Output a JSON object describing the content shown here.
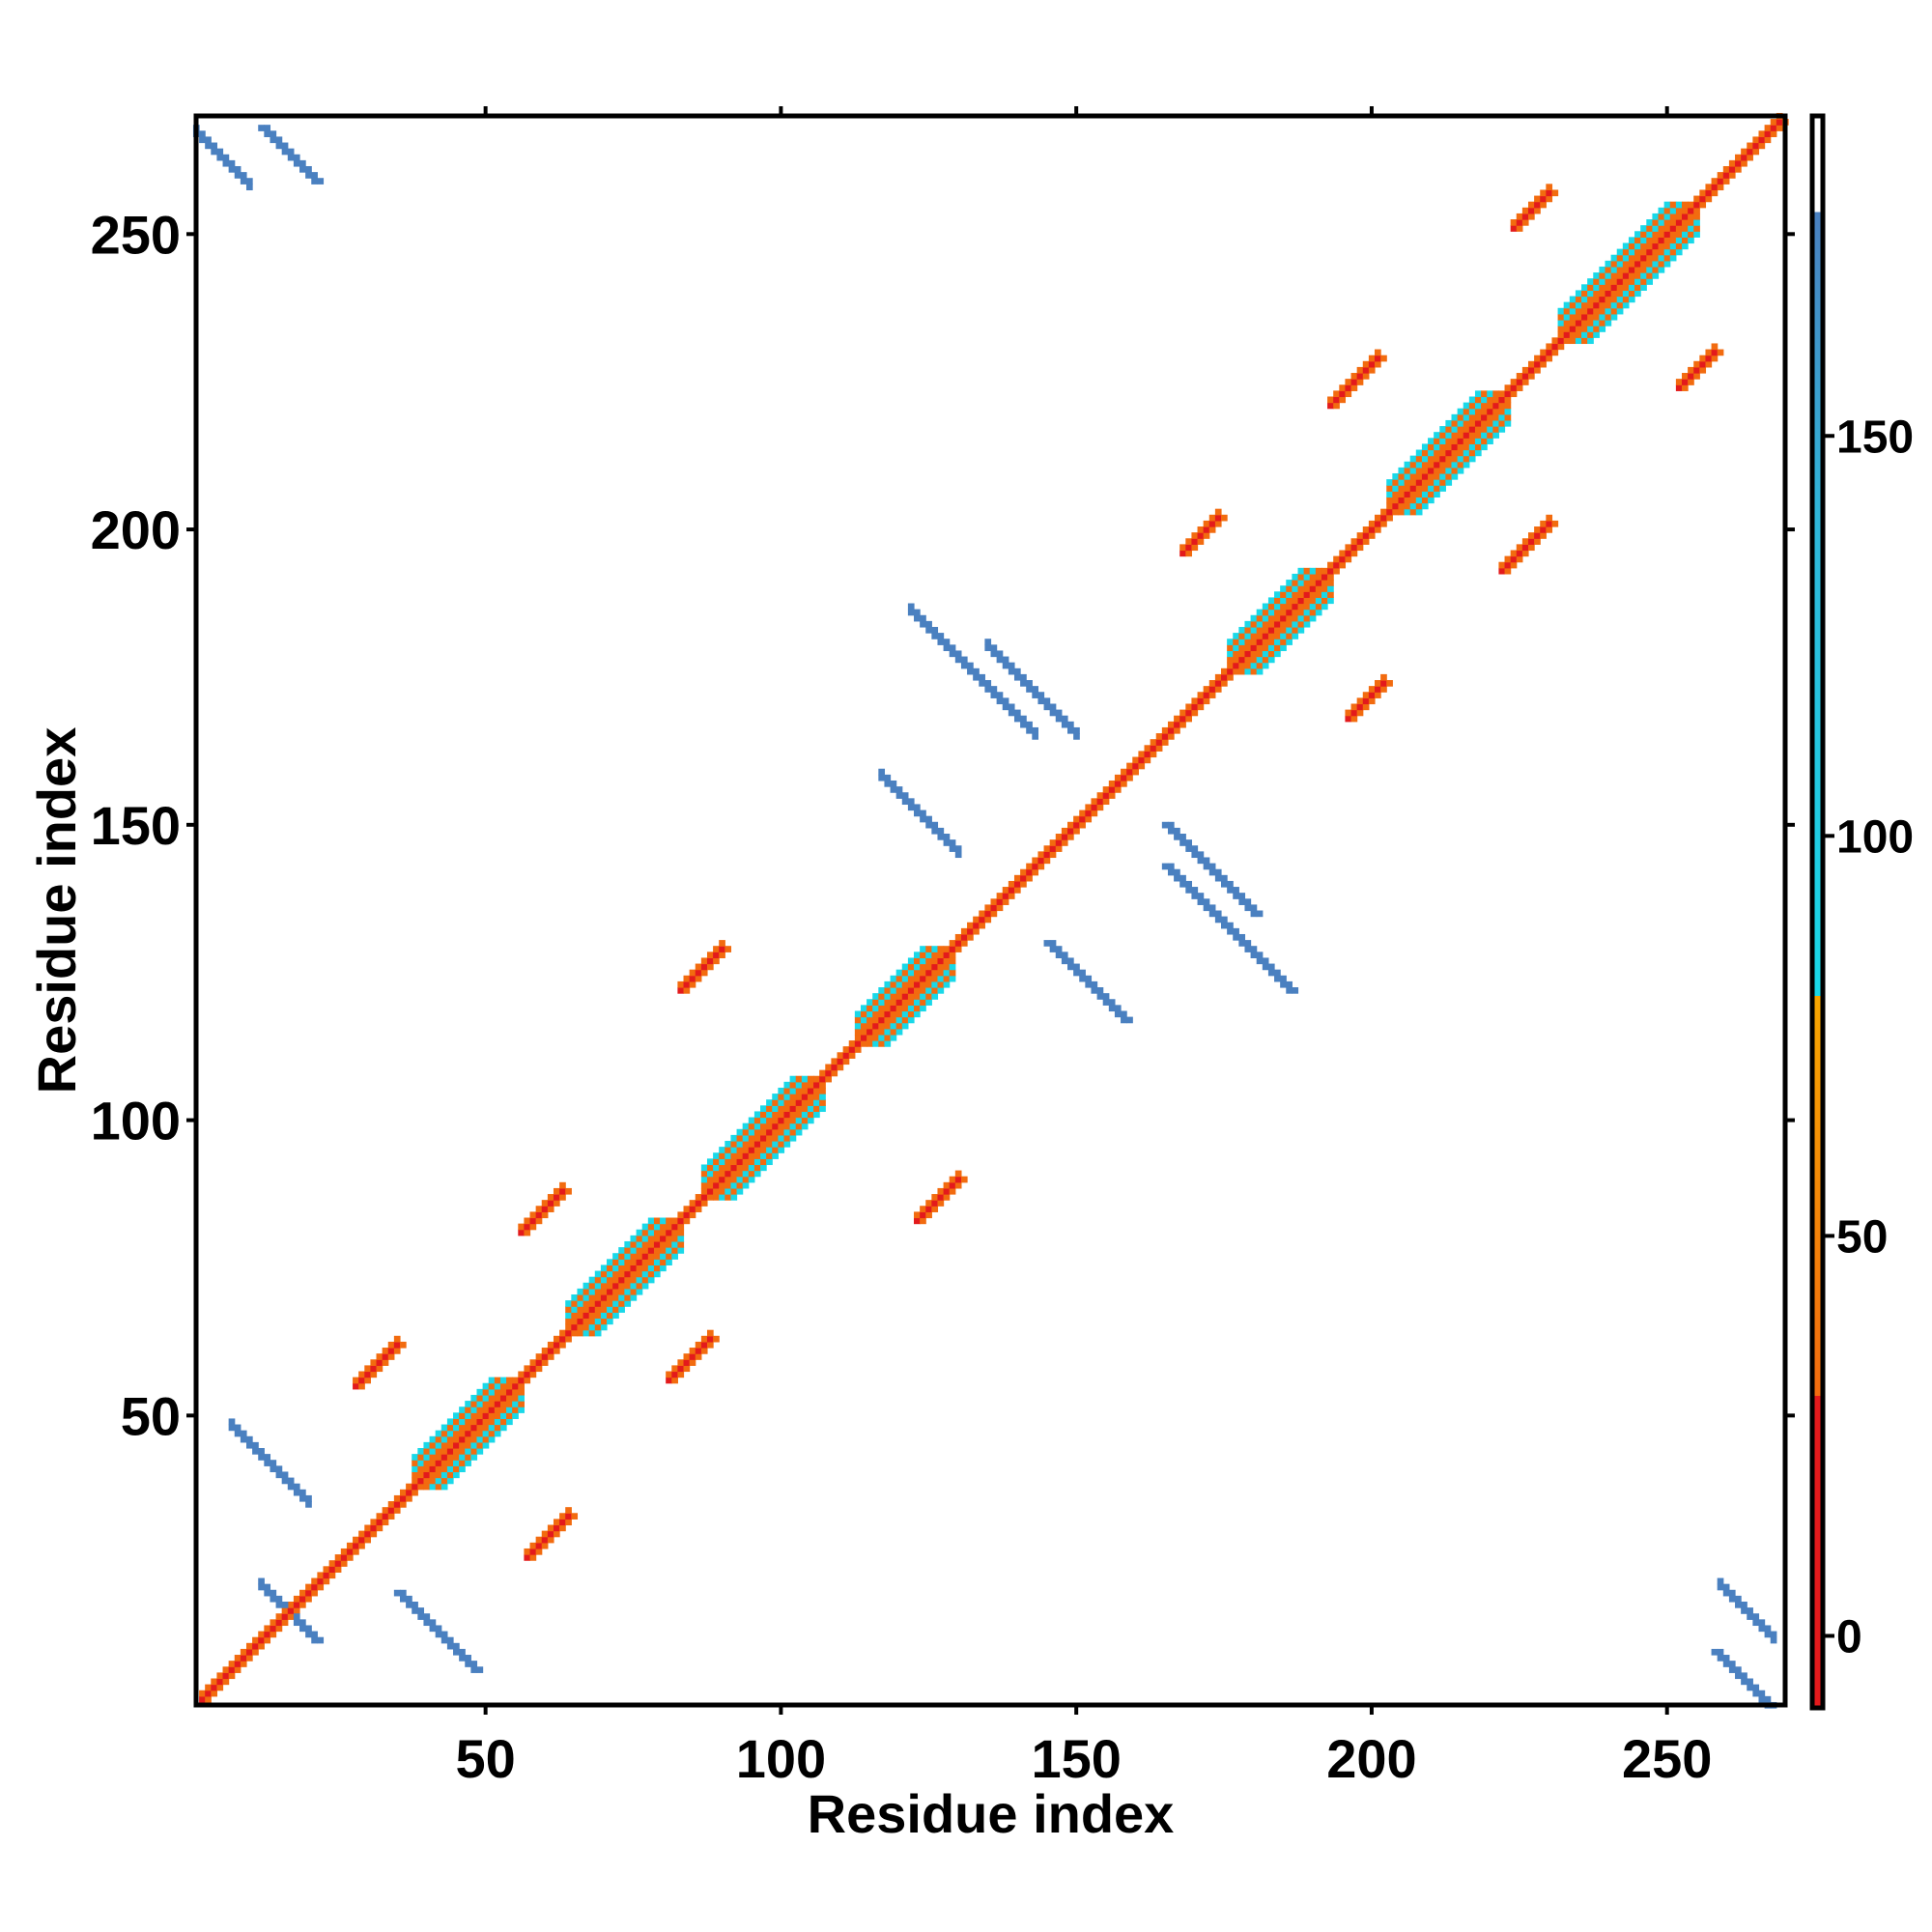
{
  "chart_data": {
    "type": "heatmap",
    "subtype": "residue contact map (symmetric)",
    "xlabel": "Residue index",
    "ylabel": "Residue index",
    "xlim": [
      1,
      270
    ],
    "ylim": [
      1,
      270
    ],
    "x_ticks": [
      50,
      100,
      150,
      200,
      250
    ],
    "y_ticks": [
      50,
      100,
      150,
      200,
      250
    ],
    "grid": false,
    "colorbar": {
      "position": "right",
      "range": [
        -9,
        190
      ],
      "ticks": [
        0,
        50,
        100,
        150
      ],
      "stops": [
        {
          "value": -9,
          "color": "#e31a1c"
        },
        {
          "value": 30,
          "color": "#e31a1c"
        },
        {
          "value": 30,
          "color": "#f26b0f"
        },
        {
          "value": 80,
          "color": "#f7a600"
        },
        {
          "value": 80,
          "color": "#19d8e8"
        },
        {
          "value": 140,
          "color": "#2fb6d9"
        },
        {
          "value": 178,
          "color": "#4a80c0"
        },
        {
          "value": 178,
          "color": "#ffffff"
        },
        {
          "value": 190,
          "color": "#ffffff"
        }
      ]
    },
    "category_colors": {
      "self": "#e31a1c",
      "close": "#f26b0f",
      "mid": "#19d8e8",
      "far": "#4a80c0"
    },
    "features": [
      {
        "kind": "diagonal_band",
        "from": 2,
        "to": 269
      },
      {
        "kind": "helix",
        "from": 38,
        "to": 55
      },
      {
        "kind": "helix",
        "from": 64,
        "to": 82
      },
      {
        "kind": "helix",
        "from": 87,
        "to": 106
      },
      {
        "kind": "helix",
        "from": 113,
        "to": 128
      },
      {
        "kind": "helix",
        "from": 176,
        "to": 192
      },
      {
        "kind": "helix",
        "from": 203,
        "to": 222
      },
      {
        "kind": "helix",
        "from": 232,
        "to": 254
      },
      {
        "kind": "antiparallel",
        "x": 12,
        "y": 21,
        "len": 10
      },
      {
        "kind": "antiparallel",
        "x": 35,
        "y": 20,
        "len": 14
      },
      {
        "kind": "antiparallel",
        "x": 165,
        "y": 143,
        "len": 22
      },
      {
        "kind": "antiparallel",
        "x": 165,
        "y": 150,
        "len": 16
      },
      {
        "kind": "antiparallel",
        "x": 145,
        "y": 130,
        "len": 14
      },
      {
        "kind": "antiparallel",
        "x": 12,
        "y": 268,
        "len": 10
      },
      {
        "kind": "antiparallel",
        "x": 258,
        "y": 10,
        "len": 10
      },
      {
        "kind": "parallel",
        "x": 57,
        "y": 26,
        "len": 8
      },
      {
        "kind": "parallel",
        "x": 28,
        "y": 55,
        "len": 8
      },
      {
        "kind": "parallel",
        "x": 56,
        "y": 81,
        "len": 8
      },
      {
        "kind": "parallel",
        "x": 81,
        "y": 56,
        "len": 8
      },
      {
        "kind": "parallel",
        "x": 83,
        "y": 122,
        "len": 8
      },
      {
        "kind": "parallel",
        "x": 123,
        "y": 83,
        "len": 8
      },
      {
        "kind": "parallel",
        "x": 168,
        "y": 196,
        "len": 7
      },
      {
        "kind": "parallel",
        "x": 196,
        "y": 168,
        "len": 7
      },
      {
        "kind": "parallel",
        "x": 193,
        "y": 221,
        "len": 9
      },
      {
        "kind": "parallel",
        "x": 222,
        "y": 193,
        "len": 9
      },
      {
        "kind": "parallel",
        "x": 224,
        "y": 251,
        "len": 7
      },
      {
        "kind": "parallel",
        "x": 252,
        "y": 224,
        "len": 7
      }
    ]
  }
}
